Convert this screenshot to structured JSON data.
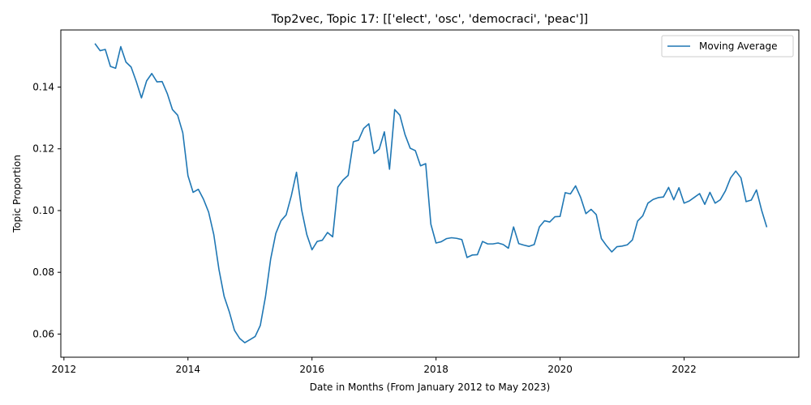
{
  "chart_data": {
    "type": "line",
    "title": "Top2vec, Topic 17: [['elect', 'osc', 'democraci', 'peac']]",
    "xlabel": "Date in Months (From January 2012 to May 2023)",
    "ylabel": "Topic Proportion",
    "xlim": [
      2011.95,
      2023.85
    ],
    "ylim": [
      0.0525,
      0.1585
    ],
    "x_ticks": [
      2012,
      2014,
      2016,
      2018,
      2020,
      2022
    ],
    "y_ticks": [
      0.06,
      0.08,
      0.1,
      0.12,
      0.14
    ],
    "y_tick_labels": [
      "0.06",
      "0.08",
      "0.10",
      "0.12",
      "0.14"
    ],
    "grid": false,
    "legend_position": "top-right",
    "series": [
      {
        "name": "Moving Average",
        "color": "#1f77b4",
        "x_start": "2012-07",
        "x_end": "2023-05",
        "values": [
          0.1541,
          0.1518,
          0.1522,
          0.1467,
          0.1461,
          0.1531,
          0.1481,
          0.1465,
          0.1418,
          0.1365,
          0.142,
          0.1444,
          0.1417,
          0.1418,
          0.1379,
          0.1327,
          0.1309,
          0.1252,
          0.1113,
          0.1059,
          0.1069,
          0.1037,
          0.0995,
          0.0922,
          0.0809,
          0.0722,
          0.0672,
          0.0612,
          0.0586,
          0.0572,
          0.0582,
          0.0592,
          0.0628,
          0.0721,
          0.0843,
          0.0926,
          0.0967,
          0.0986,
          0.1048,
          0.1124,
          0.1002,
          0.0922,
          0.0873,
          0.09,
          0.0904,
          0.0929,
          0.0915,
          0.1076,
          0.1099,
          0.1114,
          0.1223,
          0.1228,
          0.1266,
          0.1281,
          0.1185,
          0.1199,
          0.1255,
          0.1134,
          0.1327,
          0.1309,
          0.1246,
          0.1202,
          0.1194,
          0.1145,
          0.1152,
          0.0956,
          0.0895,
          0.0899,
          0.0909,
          0.0912,
          0.091,
          0.0906,
          0.0848,
          0.0856,
          0.0857,
          0.09,
          0.0892,
          0.0892,
          0.0895,
          0.089,
          0.0878,
          0.0947,
          0.0893,
          0.0888,
          0.0884,
          0.089,
          0.0947,
          0.0967,
          0.0963,
          0.098,
          0.0981,
          0.1058,
          0.1054,
          0.108,
          0.1042,
          0.099,
          0.1004,
          0.0987,
          0.0909,
          0.0886,
          0.0866,
          0.0883,
          0.0885,
          0.0889,
          0.0905,
          0.0966,
          0.0983,
          0.1024,
          0.1036,
          0.1042,
          0.1044,
          0.1075,
          0.1035,
          0.1074,
          0.1024,
          0.1031,
          0.1043,
          0.1055,
          0.102,
          0.1059,
          0.1024,
          0.1035,
          0.1064,
          0.1106,
          0.1128,
          0.1106,
          0.1029,
          0.1034,
          0.1067,
          0.1001,
          0.0946
        ]
      }
    ]
  }
}
